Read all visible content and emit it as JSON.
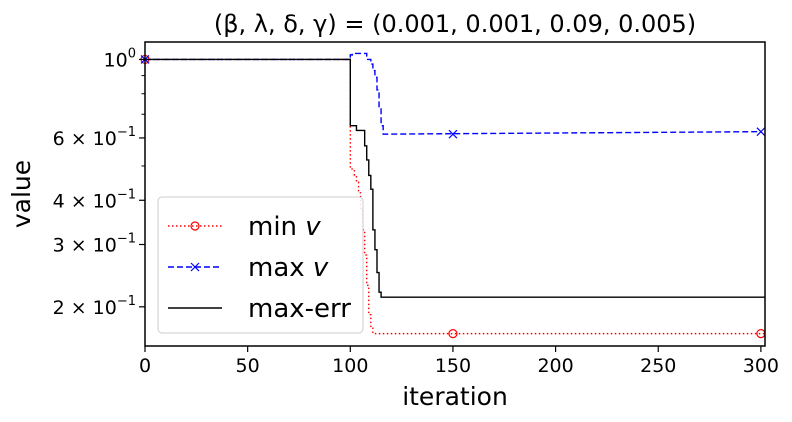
{
  "chart_data": {
    "type": "line",
    "title": "(β, λ, δ, γ) = (0.001, 0.001, 0.09, 0.005)",
    "xlabel": "iteration",
    "ylabel": "value",
    "xlim": [
      0,
      302
    ],
    "ylim": [
      0.155,
      1.12
    ],
    "yscale": "log",
    "x_ticks": [
      0,
      50,
      100,
      150,
      200,
      250,
      300
    ],
    "x_tick_labels": [
      "0",
      "50",
      "100",
      "150",
      "200",
      "250",
      "300"
    ],
    "y_ticks": [
      {
        "value": 1.0,
        "base": "10",
        "exp": "0",
        "mant": ""
      },
      {
        "value": 0.6,
        "base": "10",
        "exp": "−1",
        "mant": "6 × "
      },
      {
        "value": 0.4,
        "base": "10",
        "exp": "−1",
        "mant": "4 × "
      },
      {
        "value": 0.3,
        "base": "10",
        "exp": "−1",
        "mant": "3 × "
      },
      {
        "value": 0.2,
        "base": "10",
        "exp": "−1",
        "mant": "2 × "
      }
    ],
    "legend_position": "lower-left",
    "series": [
      {
        "name": "min v",
        "label_prefix": "min ",
        "label_var": "v",
        "color": "#ff0000",
        "line_style": "dotted",
        "marker": "circle",
        "markers_at": [
          0,
          150,
          300
        ],
        "x": [
          0,
          100,
          100,
          102,
          102,
          103,
          103,
          104,
          104,
          105,
          105,
          106,
          106,
          107,
          107,
          108,
          108,
          109,
          109,
          110,
          110,
          111,
          111,
          302
        ],
        "y": [
          1.0,
          1.0,
          0.49,
          0.49,
          0.47,
          0.47,
          0.45,
          0.45,
          0.42,
          0.42,
          0.38,
          0.38,
          0.33,
          0.33,
          0.28,
          0.28,
          0.23,
          0.23,
          0.19,
          0.19,
          0.175,
          0.175,
          0.168,
          0.168
        ]
      },
      {
        "name": "max v",
        "label_prefix": "max ",
        "label_var": "v",
        "color": "#0000ff",
        "line_style": "dashed",
        "marker": "x",
        "markers_at": [
          0,
          150,
          300
        ],
        "x": [
          0,
          100,
          100,
          101,
          101,
          108,
          108,
          110,
          110,
          111,
          111,
          112,
          112,
          113,
          113,
          114,
          114,
          115,
          115,
          116,
          116,
          300
        ],
        "y": [
          1.0,
          1.0,
          1.03,
          1.03,
          1.04,
          1.04,
          1.0,
          1.0,
          0.97,
          0.97,
          0.93,
          0.93,
          0.89,
          0.89,
          0.82,
          0.82,
          0.73,
          0.73,
          0.65,
          0.65,
          0.615,
          0.625
        ]
      },
      {
        "name": "max-err",
        "label_prefix": "max-err",
        "label_var": "",
        "color": "#000000",
        "line_style": "solid",
        "marker": "none",
        "markers_at": [],
        "x": [
          0,
          100,
          100,
          103,
          103,
          107,
          107,
          108,
          108,
          109,
          109,
          110,
          110,
          111,
          111,
          112,
          112,
          113,
          113,
          114,
          114,
          115,
          115,
          302
        ],
        "y": [
          1.0,
          1.0,
          0.65,
          0.65,
          0.63,
          0.63,
          0.57,
          0.57,
          0.52,
          0.52,
          0.47,
          0.47,
          0.43,
          0.43,
          0.33,
          0.33,
          0.29,
          0.29,
          0.25,
          0.25,
          0.22,
          0.22,
          0.213,
          0.213
        ]
      }
    ]
  }
}
